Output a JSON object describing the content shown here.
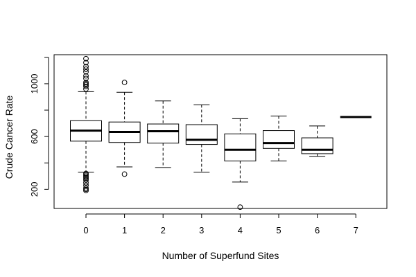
{
  "chart_data": {
    "type": "box",
    "title": "",
    "xlabel": "Number of Superfund Sites",
    "ylabel": "Crude Cancer Rate",
    "categories": [
      "0",
      "1",
      "2",
      "3",
      "4",
      "5",
      "6",
      "7"
    ],
    "y_ticks": [
      200,
      600,
      1000
    ],
    "ylim": [
      55,
      1220
    ],
    "grid": false,
    "boxes": [
      {
        "category": "0",
        "whisker_low": 330,
        "q1": 565,
        "median": 645,
        "q3": 720,
        "whisker_high": 940,
        "outliers": [
          1190,
          1160,
          1130,
          1110,
          1090,
          1060,
          1040,
          1010,
          1000,
          990,
          980,
          960,
          320,
          310,
          300,
          290,
          280,
          270,
          250,
          230,
          210,
          200,
          190
        ]
      },
      {
        "category": "1",
        "whisker_low": 370,
        "q1": 555,
        "median": 635,
        "q3": 710,
        "whisker_high": 935,
        "outliers": [
          1010,
          315
        ]
      },
      {
        "category": "2",
        "whisker_low": 365,
        "q1": 550,
        "median": 640,
        "q3": 695,
        "whisker_high": 870,
        "outliers": []
      },
      {
        "category": "3",
        "whisker_low": 330,
        "q1": 540,
        "median": 575,
        "q3": 690,
        "whisker_high": 840,
        "outliers": []
      },
      {
        "category": "4",
        "whisker_low": 255,
        "q1": 415,
        "median": 500,
        "q3": 620,
        "whisker_high": 735,
        "outliers": [
          65
        ]
      },
      {
        "category": "5",
        "whisker_low": 415,
        "q1": 510,
        "median": 550,
        "q3": 645,
        "whisker_high": 755,
        "outliers": []
      },
      {
        "category": "6",
        "whisker_low": 450,
        "q1": 470,
        "median": 500,
        "q3": 590,
        "whisker_high": 680,
        "outliers": []
      },
      {
        "category": "7",
        "whisker_low": 748,
        "q1": 748,
        "median": 748,
        "q3": 748,
        "whisker_high": 748,
        "outliers": []
      }
    ]
  }
}
